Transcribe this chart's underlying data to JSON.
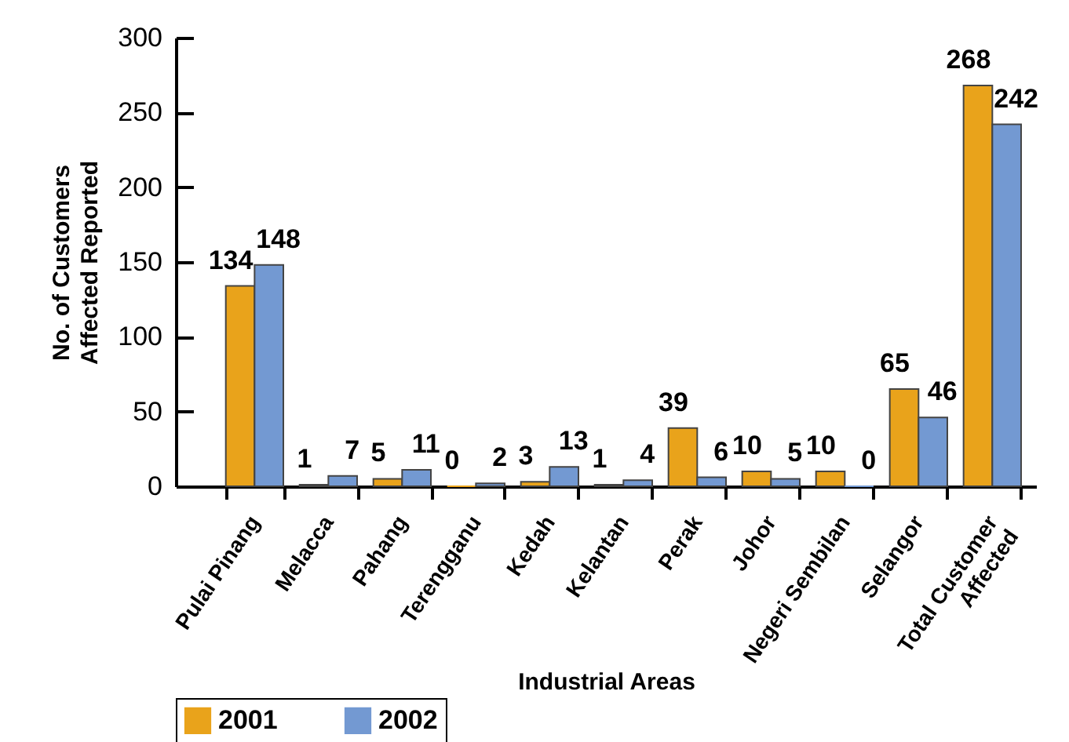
{
  "chart_data": {
    "type": "bar",
    "xlabel": "Industrial Areas",
    "ylabel": "No. of Customers\nAffected Reported",
    "categories": [
      "Pulai Pinang",
      "Melacca",
      "Pahang",
      "Terengganu",
      "Kedah",
      "Kelantan",
      "Perak",
      "Johor",
      "Negeri Sembilan",
      "Selangor",
      "Total Customer\nAffected"
    ],
    "series": [
      {
        "name": "2001",
        "color": "#e9a31b",
        "values": [
          134,
          1,
          5,
          0,
          3,
          1,
          39,
          10,
          10,
          65,
          268
        ]
      },
      {
        "name": "2002",
        "color": "#7399d2",
        "values": [
          148,
          7,
          11,
          2,
          13,
          4,
          6,
          5,
          0,
          46,
          242
        ]
      }
    ],
    "ylim": [
      0,
      300
    ],
    "yticks": [
      0,
      50,
      100,
      150,
      200,
      250,
      300
    ],
    "data_labels": true,
    "legend": "bottom"
  }
}
